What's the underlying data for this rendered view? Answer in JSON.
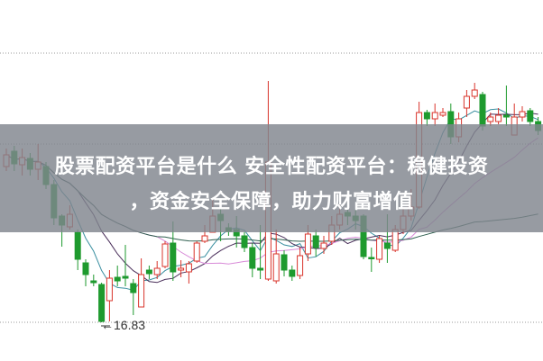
{
  "title": {
    "line1": "股票配资平台是什么 安全性配资平台：稳健投资",
    "line2": "，资金安全保障，助力财富增值"
  },
  "chart_data": {
    "type": "candlestick",
    "title": "",
    "xlabel": "",
    "ylabel": "",
    "ylim": [
      15.97,
      23.99
    ],
    "grid": "horizontal dotted",
    "gridlines": [
      22.81,
      20.79,
      16.83
    ],
    "moving_averages": [
      5,
      10,
      20,
      60
    ],
    "colors": {
      "up": "#d9342b",
      "down": "#1e9a2e",
      "ma5": "#3a8fa0",
      "ma10": "#4a2f5a",
      "ma20": "#d88ad8",
      "ma60": "#2f5f4f",
      "grid": "#9a9a9a"
    },
    "annotation": {
      "label": "16.83",
      "value": 16.83,
      "arrow": "left"
    },
    "candles": [
      [
        20.29,
        20.69,
        20.19,
        20.55
      ],
      [
        20.63,
        20.75,
        20.19,
        20.35
      ],
      [
        20.33,
        20.69,
        20.09,
        20.49
      ],
      [
        20.47,
        20.59,
        20.09,
        20.23
      ],
      [
        20.23,
        20.79,
        19.99,
        20.39
      ],
      [
        20.29,
        20.39,
        19.79,
        19.89
      ],
      [
        19.89,
        19.99,
        18.99,
        19.15
      ],
      [
        19.19,
        19.23,
        18.51,
        18.99
      ],
      [
        18.95,
        19.43,
        18.89,
        19.23
      ],
      [
        18.83,
        18.89,
        17.99,
        18.23
      ],
      [
        18.15,
        18.23,
        17.63,
        17.89
      ],
      [
        17.75,
        17.89,
        17.63,
        17.71
      ],
      [
        17.67,
        17.71,
        16.83,
        16.85
      ],
      [
        17.31,
        17.99,
        16.85,
        17.81
      ],
      [
        17.83,
        18.09,
        17.63,
        17.75
      ],
      [
        17.85,
        18.55,
        17.63,
        17.81
      ],
      [
        17.69,
        17.79,
        16.99,
        17.49
      ],
      [
        17.17,
        18.25,
        17.17,
        17.89
      ],
      [
        17.99,
        18.09,
        17.79,
        17.91
      ],
      [
        17.89,
        18.19,
        17.79,
        18.03
      ],
      [
        18.07,
        18.63,
        18.03,
        18.57
      ],
      [
        18.59,
        19.07,
        17.75,
        17.95
      ],
      [
        17.99,
        18.21,
        17.83,
        18.03
      ],
      [
        17.95,
        18.19,
        17.69,
        18.13
      ],
      [
        18.19,
        18.63,
        18.15,
        18.59
      ],
      [
        18.63,
        18.99,
        18.59,
        18.75
      ],
      [
        18.83,
        19.59,
        18.83,
        19.19
      ],
      [
        19.23,
        19.35,
        18.63,
        19.09
      ],
      [
        18.93,
        19.03,
        18.75,
        18.85
      ],
      [
        18.89,
        19.19,
        18.49,
        18.75
      ],
      [
        18.75,
        18.83,
        18.39,
        18.49
      ],
      [
        18.49,
        18.59,
        17.83,
        18.03
      ],
      [
        18.03,
        18.99,
        17.79,
        17.99
      ],
      [
        17.79,
        22.19,
        17.75,
        20.39
      ],
      [
        17.75,
        18.89,
        17.69,
        18.35
      ],
      [
        18.33,
        18.43,
        17.85,
        17.99
      ],
      [
        17.99,
        18.09,
        17.75,
        17.85
      ],
      [
        17.87,
        18.49,
        17.79,
        18.31
      ],
      [
        18.35,
        18.99,
        18.19,
        18.79
      ],
      [
        18.75,
        18.89,
        18.29,
        18.49
      ],
      [
        18.47,
        18.75,
        18.35,
        18.59
      ],
      [
        18.63,
        19.19,
        18.55,
        18.99
      ],
      [
        18.99,
        19.49,
        18.89,
        19.23
      ],
      [
        19.27,
        19.59,
        18.99,
        19.19
      ],
      [
        19.19,
        19.35,
        18.89,
        19.09
      ],
      [
        19.19,
        19.23,
        18.23,
        18.29
      ],
      [
        18.27,
        18.49,
        17.95,
        18.25
      ],
      [
        18.23,
        18.75,
        18.15,
        18.69
      ],
      [
        18.59,
        19.23,
        18.15,
        18.47
      ],
      [
        18.43,
        18.99,
        18.39,
        18.89
      ],
      [
        18.89,
        19.39,
        18.79,
        19.19
      ],
      [
        19.19,
        19.79,
        19.09,
        19.39
      ],
      [
        19.39,
        21.73,
        19.35,
        21.49
      ],
      [
        21.49,
        21.55,
        21.19,
        21.35
      ],
      [
        21.35,
        21.69,
        21.19,
        21.49
      ],
      [
        21.43,
        21.59,
        21.39,
        21.49
      ],
      [
        21.51,
        21.69,
        20.79,
        20.95
      ],
      [
        20.95,
        21.49,
        20.83,
        21.35
      ],
      [
        21.59,
        21.99,
        21.39,
        21.85
      ],
      [
        21.85,
        22.15,
        21.79,
        21.99
      ],
      [
        21.89,
        21.95,
        21.09,
        21.19
      ],
      [
        21.29,
        21.49,
        21.19,
        21.39
      ],
      [
        21.29,
        21.59,
        21.23,
        21.43
      ],
      [
        21.43,
        22.09,
        21.19,
        21.39
      ],
      [
        20.99,
        21.69,
        20.99,
        21.39
      ],
      [
        21.39,
        21.63,
        21.29,
        21.51
      ],
      [
        21.53,
        21.59,
        21.19,
        21.29
      ],
      [
        21.29,
        21.39,
        20.99,
        21.09
      ]
    ]
  }
}
